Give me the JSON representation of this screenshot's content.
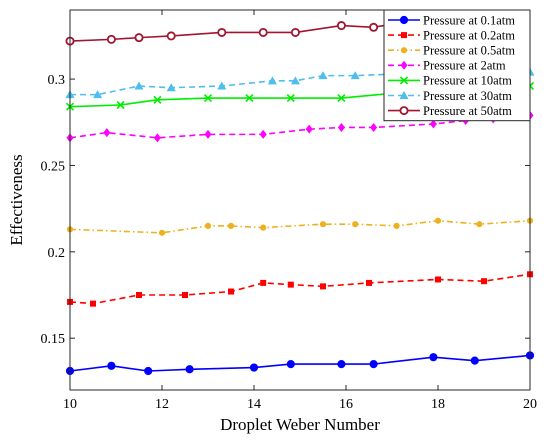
{
  "chart_data": {
    "type": "line",
    "xlabel": "Droplet Weber Number",
    "ylabel": "Effectiveness",
    "xlim": [
      10,
      20
    ],
    "ylim": [
      0.12,
      0.34
    ],
    "xticks": [
      10,
      12,
      14,
      16,
      18,
      20
    ],
    "yticks": [
      0.15,
      0.2,
      0.25,
      0.3
    ],
    "ytick_labels": [
      "0.15",
      "0.2",
      "0.25",
      "0.3"
    ],
    "legend_position": "top-right",
    "grid": false,
    "series": [
      {
        "name": "Pressure at 0.1atm",
        "color": "#0000ff",
        "dash": "solid",
        "marker": "circle",
        "x": [
          10,
          10.9,
          11.7,
          12.6,
          14.0,
          14.8,
          15.9,
          16.6,
          17.9,
          18.8,
          20
        ],
        "y": [
          0.131,
          0.134,
          0.131,
          0.132,
          0.133,
          0.135,
          0.135,
          0.135,
          0.139,
          0.137,
          0.14
        ]
      },
      {
        "name": "Pressure at 0.2atm",
        "color": "#ff0000",
        "dash": "dashed",
        "marker": "square",
        "x": [
          10,
          10.5,
          11.5,
          12.5,
          13.5,
          14.2,
          14.8,
          15.5,
          16.5,
          18.0,
          19.0,
          20
        ],
        "y": [
          0.171,
          0.17,
          0.175,
          0.175,
          0.177,
          0.182,
          0.181,
          0.18,
          0.182,
          0.184,
          0.183,
          0.187
        ]
      },
      {
        "name": "Pressure at 0.5atm",
        "color": "#edb120",
        "dash": "dashdot",
        "marker": "circle-small",
        "x": [
          10,
          12.0,
          13.0,
          13.5,
          14.2,
          15.5,
          16.2,
          17.1,
          18.0,
          18.9,
          20
        ],
        "y": [
          0.213,
          0.211,
          0.215,
          0.215,
          0.214,
          0.216,
          0.216,
          0.215,
          0.218,
          0.216,
          0.218
        ]
      },
      {
        "name": "Pressure at 2atm",
        "color": "#ff00ff",
        "dash": "dashed",
        "marker": "diamond",
        "x": [
          10,
          10.8,
          11.9,
          13.0,
          14.2,
          15.2,
          15.9,
          16.6,
          17.9,
          18.6,
          19.2,
          20
        ],
        "y": [
          0.266,
          0.269,
          0.266,
          0.268,
          0.268,
          0.271,
          0.272,
          0.272,
          0.274,
          0.276,
          0.277,
          0.279
        ]
      },
      {
        "name": "Pressure at 10atm",
        "color": "#00ee00",
        "dash": "solid",
        "marker": "x",
        "x": [
          10,
          11.1,
          11.9,
          13.0,
          13.9,
          14.8,
          15.9,
          17.1,
          18.0,
          18.8,
          20
        ],
        "y": [
          0.284,
          0.285,
          0.288,
          0.289,
          0.289,
          0.289,
          0.289,
          0.292,
          0.293,
          0.295,
          0.296
        ]
      },
      {
        "name": "Pressure at 30atm",
        "color": "#4dbeee",
        "dash": "dashed",
        "marker": "triangle",
        "x": [
          10,
          10.6,
          11.5,
          12.2,
          13.3,
          14.4,
          14.9,
          15.5,
          16.2,
          17.1,
          18.0,
          18.8,
          20
        ],
        "y": [
          0.291,
          0.291,
          0.296,
          0.295,
          0.296,
          0.299,
          0.299,
          0.302,
          0.302,
          0.303,
          0.304,
          0.304,
          0.304
        ]
      },
      {
        "name": "Pressure at 50atm",
        "color": "#a2142f",
        "dash": "solid",
        "marker": "circle-open",
        "x": [
          10,
          10.9,
          11.5,
          12.2,
          13.3,
          14.2,
          14.9,
          15.9,
          16.6,
          17.5
        ],
        "y": [
          0.322,
          0.323,
          0.324,
          0.325,
          0.327,
          0.327,
          0.327,
          0.331,
          0.33,
          0.334
        ]
      }
    ]
  }
}
